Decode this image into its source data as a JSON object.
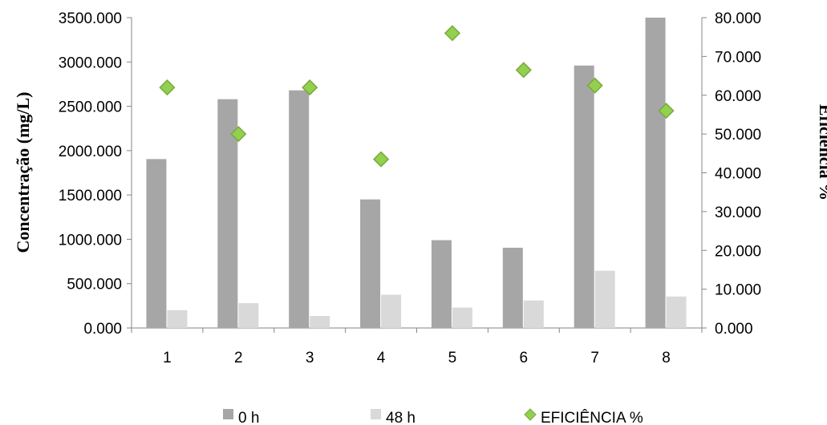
{
  "chart_data": {
    "type": "bar",
    "categories": [
      "1",
      "2",
      "3",
      "4",
      "5",
      "6",
      "7",
      "8"
    ],
    "series": [
      {
        "name": "0 h",
        "kind": "bar",
        "axis": "left",
        "color": "#a6a6a6",
        "values": [
          1905,
          2580,
          2680,
          1450,
          990,
          905,
          2960,
          3500
        ]
      },
      {
        "name": "48 h",
        "kind": "bar",
        "axis": "left",
        "color": "#d9d9d9",
        "values": [
          200,
          280,
          135,
          375,
          230,
          310,
          645,
          355
        ]
      },
      {
        "name": "EFICIÊNCIA %",
        "kind": "scatter",
        "axis": "right",
        "color": "#92d050",
        "marker": "diamond",
        "values": [
          62,
          50,
          62,
          43.5,
          76,
          66.5,
          62.5,
          56
        ]
      }
    ],
    "y_left": {
      "label": "Concentração (mg/L)",
      "ylim": [
        0,
        3500
      ],
      "ticks": [
        "0.000",
        "500.000",
        "1000.000",
        "1500.000",
        "2000.000",
        "2500.000",
        "3000.000",
        "3500.000"
      ]
    },
    "y_right": {
      "label": "Eficiência %",
      "ylim": [
        0,
        80
      ],
      "ticks": [
        "0.000",
        "10.000",
        "20.000",
        "30.000",
        "40.000",
        "50.000",
        "60.000",
        "70.000",
        "80.000"
      ]
    },
    "grid": false,
    "legend_position": "bottom"
  }
}
